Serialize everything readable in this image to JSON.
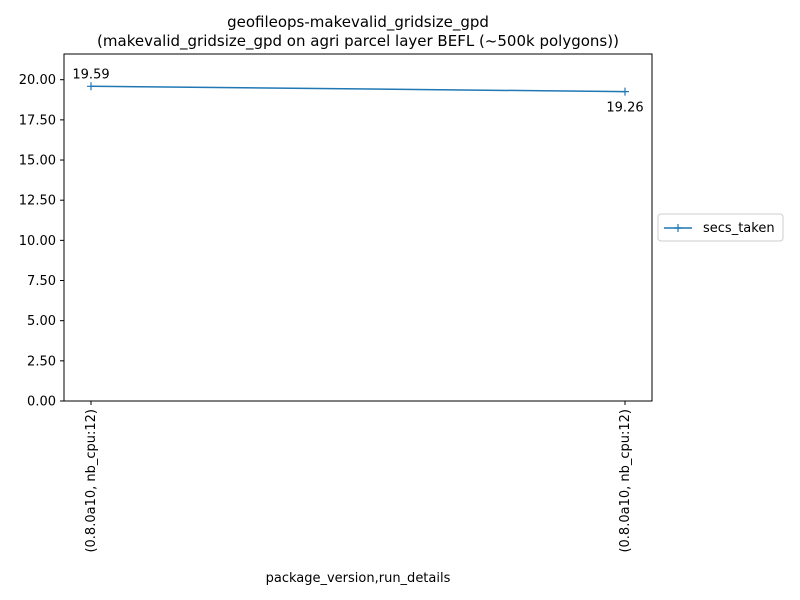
{
  "chart_data": {
    "type": "line",
    "title": "geofileops-makevalid_gridsize_gpd",
    "subtitle": "(makevalid_gridsize_gpd on agri parcel layer BEFL (~500k polygons))",
    "xlabel": "package_version,run_details",
    "ylabel": "",
    "categories": [
      "(0.8.0a10, nb_cpu:12)",
      "(0.8.0a10, nb_cpu:12)"
    ],
    "series": [
      {
        "name": "secs_taken",
        "values": [
          19.59,
          19.26
        ],
        "color": "#1f77b4",
        "marker": "plus"
      }
    ],
    "data_labels": [
      "19.59",
      "19.26"
    ],
    "ylim": [
      0,
      21.6
    ],
    "yticks": [
      0,
      2.5,
      5,
      7.5,
      10,
      12.5,
      15,
      17.5,
      20
    ],
    "ytick_labels": [
      "0.00",
      "2.50",
      "5.00",
      "7.50",
      "10.00",
      "12.50",
      "15.00",
      "17.50",
      "20.00"
    ],
    "grid": false,
    "legend_position": "right"
  }
}
